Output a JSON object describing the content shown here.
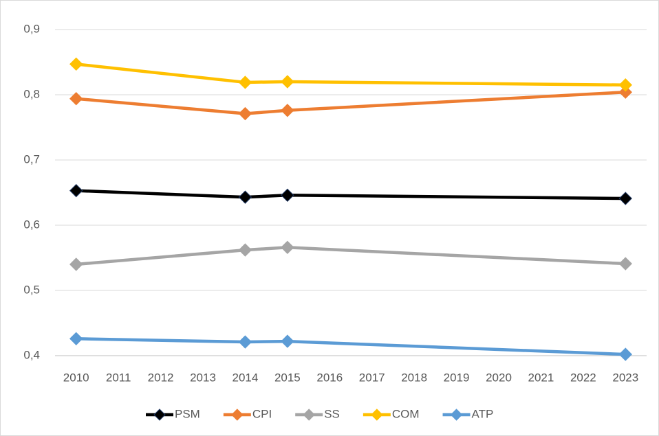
{
  "chart_data": {
    "type": "line",
    "x": [
      2010,
      2014,
      2015,
      2023
    ],
    "series": [
      {
        "name": "PSM",
        "color": "#000000",
        "values": [
          0.653,
          0.643,
          0.646,
          0.641
        ]
      },
      {
        "name": "CPI",
        "color": "#ed7d31",
        "values": [
          0.794,
          0.771,
          0.776,
          0.804
        ]
      },
      {
        "name": "SS",
        "color": "#a5a5a5",
        "values": [
          0.54,
          0.562,
          0.566,
          0.541
        ]
      },
      {
        "name": "COM",
        "color": "#ffc000",
        "values": [
          0.847,
          0.819,
          0.82,
          0.815
        ]
      },
      {
        "name": "ATP",
        "color": "#5b9bd5",
        "values": [
          0.426,
          0.421,
          0.422,
          0.402
        ]
      }
    ],
    "xlim": [
      2009.5,
      2023.5
    ],
    "xticks": [
      2010,
      2011,
      2012,
      2013,
      2014,
      2015,
      2016,
      2017,
      2018,
      2019,
      2020,
      2021,
      2022,
      2023
    ],
    "ylim": [
      0.4,
      0.9
    ],
    "yticks": [
      {
        "value": 0.4,
        "label": "0,4"
      },
      {
        "value": 0.5,
        "label": "0,5"
      },
      {
        "value": 0.6,
        "label": "0,6"
      },
      {
        "value": 0.7,
        "label": "0,7"
      },
      {
        "value": 0.8,
        "label": "0,8"
      },
      {
        "value": 0.9,
        "label": "0,9"
      }
    ],
    "grid": true,
    "legend": "bottom"
  }
}
